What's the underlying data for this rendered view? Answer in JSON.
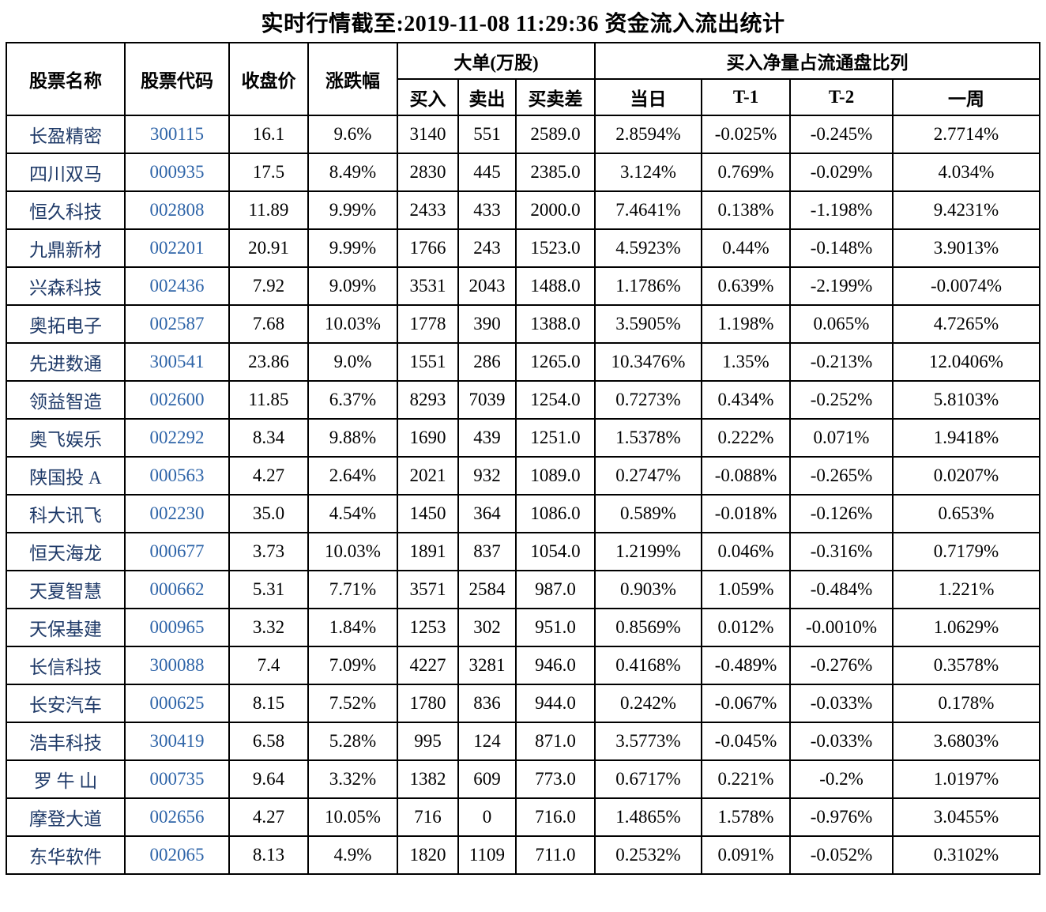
{
  "title": "实时行情截至:2019-11-08 11:29:36 资金流入流出统计",
  "colors": {
    "stock_name_text": "#1f3a68",
    "stock_code_text": "#2e64a8",
    "border": "#000000",
    "background": "#ffffff",
    "body_text": "#000000"
  },
  "table": {
    "headers": {
      "name": "股票名称",
      "code": "股票代码",
      "close": "收盘价",
      "change": "涨跌幅",
      "big_orders_group": "大单(万股)",
      "buy": "买入",
      "sell": "卖出",
      "diff": "买卖差",
      "net_buy_group": "买入净量占流通盘比列",
      "today": "当日",
      "t1": "T-1",
      "t2": "T-2",
      "week": "一周"
    },
    "rows": [
      {
        "name": "长盈精密",
        "code": "300115",
        "close": "16.1",
        "change": "9.6%",
        "buy": "3140",
        "sell": "551",
        "diff": "2589.0",
        "today": "2.8594%",
        "t1": "-0.025%",
        "t2": "-0.245%",
        "week": "2.7714%"
      },
      {
        "name": "四川双马",
        "code": "000935",
        "close": "17.5",
        "change": "8.49%",
        "buy": "2830",
        "sell": "445",
        "diff": "2385.0",
        "today": "3.124%",
        "t1": "0.769%",
        "t2": "-0.029%",
        "week": "4.034%"
      },
      {
        "name": "恒久科技",
        "code": "002808",
        "close": "11.89",
        "change": "9.99%",
        "buy": "2433",
        "sell": "433",
        "diff": "2000.0",
        "today": "7.4641%",
        "t1": "0.138%",
        "t2": "-1.198%",
        "week": "9.4231%"
      },
      {
        "name": "九鼎新材",
        "code": "002201",
        "close": "20.91",
        "change": "9.99%",
        "buy": "1766",
        "sell": "243",
        "diff": "1523.0",
        "today": "4.5923%",
        "t1": "0.44%",
        "t2": "-0.148%",
        "week": "3.9013%"
      },
      {
        "name": "兴森科技",
        "code": "002436",
        "close": "7.92",
        "change": "9.09%",
        "buy": "3531",
        "sell": "2043",
        "diff": "1488.0",
        "today": "1.1786%",
        "t1": "0.639%",
        "t2": "-2.199%",
        "week": "-0.0074%"
      },
      {
        "name": "奥拓电子",
        "code": "002587",
        "close": "7.68",
        "change": "10.03%",
        "buy": "1778",
        "sell": "390",
        "diff": "1388.0",
        "today": "3.5905%",
        "t1": "1.198%",
        "t2": "0.065%",
        "week": "4.7265%"
      },
      {
        "name": "先进数通",
        "code": "300541",
        "close": "23.86",
        "change": "9.0%",
        "buy": "1551",
        "sell": "286",
        "diff": "1265.0",
        "today": "10.3476%",
        "t1": "1.35%",
        "t2": "-0.213%",
        "week": "12.0406%"
      },
      {
        "name": "领益智造",
        "code": "002600",
        "close": "11.85",
        "change": "6.37%",
        "buy": "8293",
        "sell": "7039",
        "diff": "1254.0",
        "today": "0.7273%",
        "t1": "0.434%",
        "t2": "-0.252%",
        "week": "5.8103%"
      },
      {
        "name": "奥飞娱乐",
        "code": "002292",
        "close": "8.34",
        "change": "9.88%",
        "buy": "1690",
        "sell": "439",
        "diff": "1251.0",
        "today": "1.5378%",
        "t1": "0.222%",
        "t2": "0.071%",
        "week": "1.9418%"
      },
      {
        "name": "陕国投 A",
        "code": "000563",
        "close": "4.27",
        "change": "2.64%",
        "buy": "2021",
        "sell": "932",
        "diff": "1089.0",
        "today": "0.2747%",
        "t1": "-0.088%",
        "t2": "-0.265%",
        "week": "0.0207%"
      },
      {
        "name": "科大讯飞",
        "code": "002230",
        "close": "35.0",
        "change": "4.54%",
        "buy": "1450",
        "sell": "364",
        "diff": "1086.0",
        "today": "0.589%",
        "t1": "-0.018%",
        "t2": "-0.126%",
        "week": "0.653%"
      },
      {
        "name": "恒天海龙",
        "code": "000677",
        "close": "3.73",
        "change": "10.03%",
        "buy": "1891",
        "sell": "837",
        "diff": "1054.0",
        "today": "1.2199%",
        "t1": "0.046%",
        "t2": "-0.316%",
        "week": "0.7179%"
      },
      {
        "name": "天夏智慧",
        "code": "000662",
        "close": "5.31",
        "change": "7.71%",
        "buy": "3571",
        "sell": "2584",
        "diff": "987.0",
        "today": "0.903%",
        "t1": "1.059%",
        "t2": "-0.484%",
        "week": "1.221%"
      },
      {
        "name": "天保基建",
        "code": "000965",
        "close": "3.32",
        "change": "1.84%",
        "buy": "1253",
        "sell": "302",
        "diff": "951.0",
        "today": "0.8569%",
        "t1": "0.012%",
        "t2": "-0.0010%",
        "week": "1.0629%"
      },
      {
        "name": "长信科技",
        "code": "300088",
        "close": "7.4",
        "change": "7.09%",
        "buy": "4227",
        "sell": "3281",
        "diff": "946.0",
        "today": "0.4168%",
        "t1": "-0.489%",
        "t2": "-0.276%",
        "week": "0.3578%"
      },
      {
        "name": "长安汽车",
        "code": "000625",
        "close": "8.15",
        "change": "7.52%",
        "buy": "1780",
        "sell": "836",
        "diff": "944.0",
        "today": "0.242%",
        "t1": "-0.067%",
        "t2": "-0.033%",
        "week": "0.178%"
      },
      {
        "name": "浩丰科技",
        "code": "300419",
        "close": "6.58",
        "change": "5.28%",
        "buy": "995",
        "sell": "124",
        "diff": "871.0",
        "today": "3.5773%",
        "t1": "-0.045%",
        "t2": "-0.033%",
        "week": "3.6803%"
      },
      {
        "name": "罗 牛 山",
        "code": "000735",
        "close": "9.64",
        "change": "3.32%",
        "buy": "1382",
        "sell": "609",
        "diff": "773.0",
        "today": "0.6717%",
        "t1": "0.221%",
        "t2": "-0.2%",
        "week": "1.0197%"
      },
      {
        "name": "摩登大道",
        "code": "002656",
        "close": "4.27",
        "change": "10.05%",
        "buy": "716",
        "sell": "0",
        "diff": "716.0",
        "today": "1.4865%",
        "t1": "1.578%",
        "t2": "-0.976%",
        "week": "3.0455%"
      },
      {
        "name": "东华软件",
        "code": "002065",
        "close": "8.13",
        "change": "4.9%",
        "buy": "1820",
        "sell": "1109",
        "diff": "711.0",
        "today": "0.2532%",
        "t1": "0.091%",
        "t2": "-0.052%",
        "week": "0.3102%"
      }
    ]
  }
}
